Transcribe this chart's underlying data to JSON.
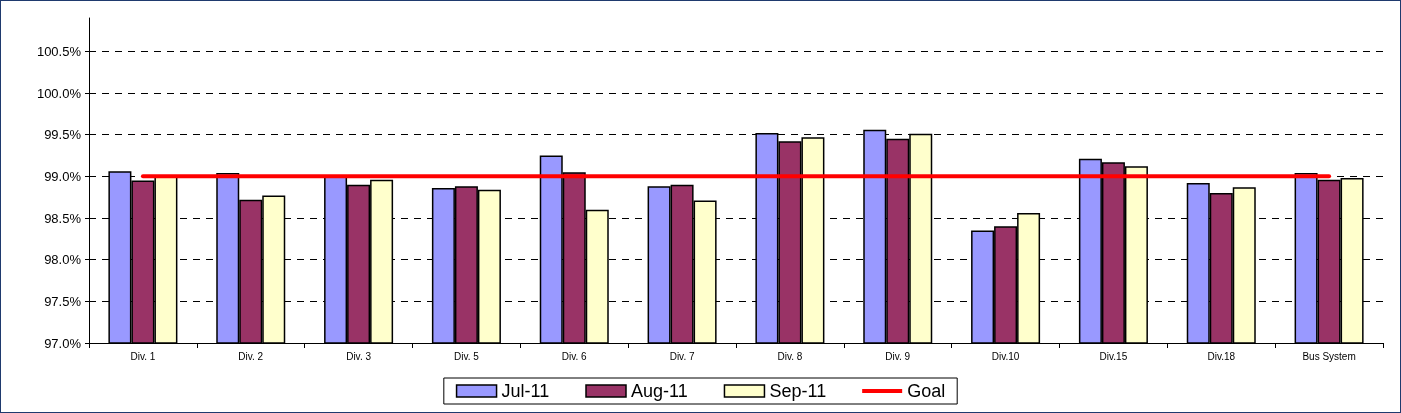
{
  "chart_data": {
    "type": "bar",
    "categories": [
      "Div. 1",
      "Div. 2",
      "Div. 3",
      "Div. 5",
      "Div. 6",
      "Div. 7",
      "Div. 8",
      "Div. 9",
      "Div.10",
      "Div.15",
      "Div.18",
      "Bus System"
    ],
    "series": [
      {
        "name": "Jul-11",
        "color": "#9999ff",
        "values": [
          99.06,
          99.04,
          99.01,
          98.86,
          99.25,
          98.88,
          99.52,
          99.56,
          98.35,
          99.21,
          98.92,
          99.04
        ]
      },
      {
        "name": "Aug-11",
        "color": "#993366",
        "values": [
          98.95,
          98.72,
          98.9,
          98.88,
          99.05,
          98.9,
          99.42,
          99.45,
          98.4,
          99.17,
          98.8,
          98.96
        ]
      },
      {
        "name": "Sep-11",
        "color": "#ffffcc",
        "values": [
          99.0,
          98.77,
          98.96,
          98.84,
          98.6,
          98.71,
          99.47,
          99.51,
          98.56,
          99.12,
          98.87,
          98.98
        ]
      },
      {
        "name": "Goal",
        "type": "line",
        "color": "#ff0000",
        "line_style": "solid",
        "marker": "none",
        "values": [
          99.0,
          99.0,
          99.0,
          99.0,
          99.0,
          99.0,
          99.0,
          99.0,
          99.0,
          99.0,
          99.0,
          99.0
        ]
      }
    ],
    "ylim": [
      97,
      100.9
    ],
    "yticks": [
      {
        "value": 97,
        "label": "97.0%"
      },
      {
        "value": 97.5,
        "label": "97.5%"
      },
      {
        "value": 98,
        "label": "98.0%"
      },
      {
        "value": 98.5,
        "label": "98.5%"
      },
      {
        "value": 99,
        "label": "99.0%"
      },
      {
        "value": 99.5,
        "label": "99.5%"
      },
      {
        "value": 100,
        "label": "100.0%"
      },
      {
        "value": 100.5,
        "label": "100.5%"
      }
    ],
    "grid": "y",
    "legend": "bottom"
  }
}
